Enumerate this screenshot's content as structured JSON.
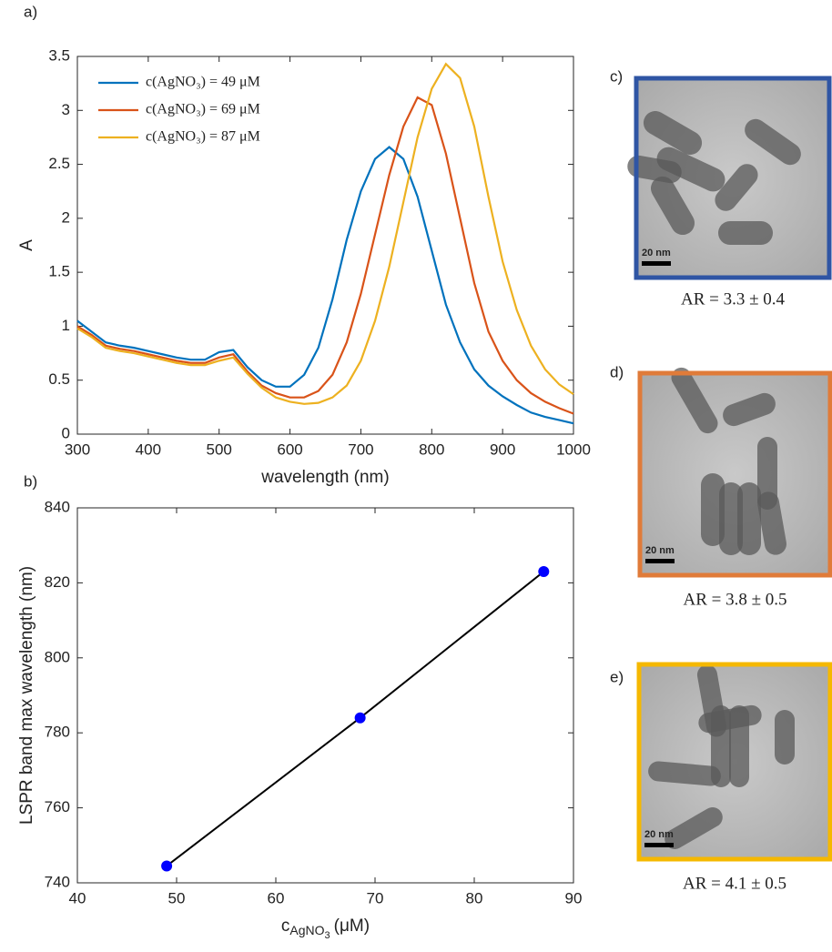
{
  "chart_data": [
    {
      "type": "line",
      "panel_label": "a)",
      "x_label": "wavelength (nm)",
      "y_label": "A",
      "x": [
        300,
        320,
        340,
        360,
        380,
        400,
        420,
        440,
        460,
        480,
        500,
        520,
        540,
        560,
        580,
        600,
        620,
        640,
        660,
        680,
        700,
        720,
        740,
        760,
        780,
        800,
        820,
        840,
        860,
        880,
        900,
        920,
        940,
        960,
        980,
        1000
      ],
      "series": [
        {
          "name": "c(AgNO₃) = 49 μM",
          "color": "#0072bd",
          "values": [
            1.05,
            0.95,
            0.85,
            0.82,
            0.8,
            0.77,
            0.74,
            0.71,
            0.69,
            0.69,
            0.76,
            0.78,
            0.62,
            0.5,
            0.44,
            0.44,
            0.55,
            0.8,
            1.25,
            1.8,
            2.25,
            2.55,
            2.66,
            2.55,
            2.2,
            1.7,
            1.2,
            0.85,
            0.6,
            0.45,
            0.35,
            0.27,
            0.2,
            0.16,
            0.13,
            0.1
          ]
        },
        {
          "name": "c(AgNO₃) = 69 μM",
          "color": "#d95319",
          "values": [
            1.0,
            0.92,
            0.82,
            0.79,
            0.77,
            0.74,
            0.71,
            0.68,
            0.66,
            0.66,
            0.71,
            0.74,
            0.58,
            0.45,
            0.38,
            0.34,
            0.34,
            0.4,
            0.55,
            0.85,
            1.3,
            1.85,
            2.4,
            2.85,
            3.12,
            3.05,
            2.6,
            2.0,
            1.4,
            0.95,
            0.68,
            0.5,
            0.38,
            0.3,
            0.24,
            0.19
          ]
        },
        {
          "name": "c(AgNO₃) = 87 μM",
          "color": "#edb120",
          "values": [
            0.98,
            0.9,
            0.8,
            0.77,
            0.75,
            0.72,
            0.69,
            0.66,
            0.64,
            0.64,
            0.68,
            0.71,
            0.56,
            0.43,
            0.34,
            0.3,
            0.28,
            0.29,
            0.34,
            0.45,
            0.68,
            1.05,
            1.55,
            2.15,
            2.75,
            3.2,
            3.43,
            3.3,
            2.85,
            2.2,
            1.6,
            1.15,
            0.82,
            0.6,
            0.46,
            0.37
          ]
        }
      ],
      "xlim": [
        300,
        1000
      ],
      "xticks": [
        300,
        400,
        500,
        600,
        700,
        800,
        900,
        1000
      ],
      "ylim": [
        0,
        3.5
      ],
      "yticks": [
        0,
        0.5,
        1,
        1.5,
        2,
        2.5,
        3,
        3.5
      ],
      "legend": "upper left"
    },
    {
      "type": "scatter",
      "panel_label": "b)",
      "x_label": [
        "c",
        "AgNO",
        "3",
        "(μM)"
      ],
      "y_label": "LSPR band max wavelength (nm)",
      "x": [
        49,
        68.5,
        87
      ],
      "values": [
        744.5,
        784,
        823
      ],
      "color": "#0000ff",
      "line_color": "#000000",
      "xlim": [
        40,
        90
      ],
      "xticks": [
        40,
        50,
        60,
        70,
        80,
        90
      ],
      "ylim": [
        740,
        840
      ],
      "yticks": [
        740,
        760,
        780,
        800,
        820,
        840
      ]
    }
  ],
  "panels": [
    {
      "label": "c)",
      "scale": "20 nm",
      "caption": "AR = 3.3 ± 0.4",
      "color": "#2f55a4"
    },
    {
      "label": "d)",
      "scale": "20 nm",
      "caption": "AR = 3.8 ± 0.5",
      "color": "#e07b39"
    },
    {
      "label": "e)",
      "scale": "20 nm",
      "caption": "AR = 4.1 ± 0.5",
      "color": "#f5b800"
    }
  ]
}
